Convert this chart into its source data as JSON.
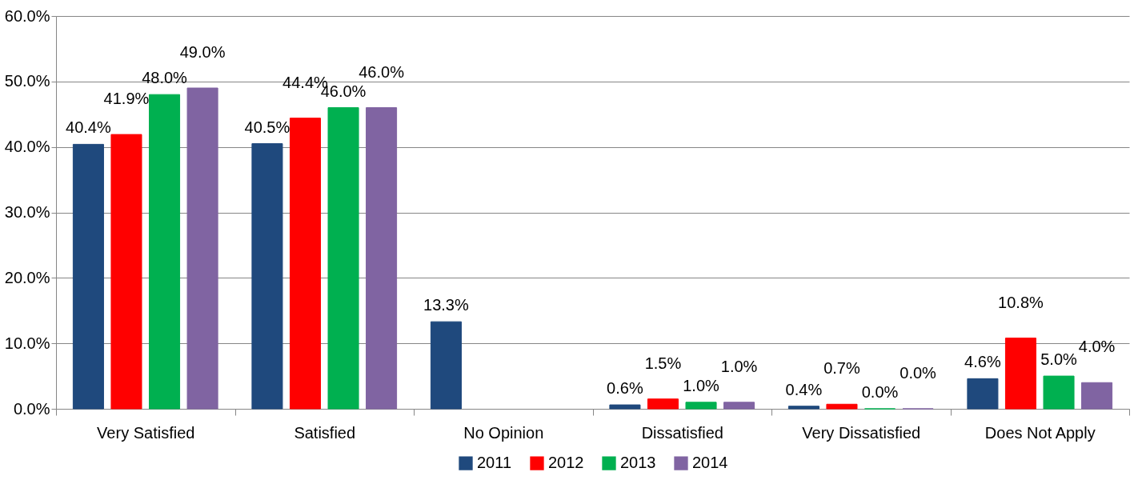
{
  "chart_data": {
    "type": "bar",
    "categories": [
      "Very Satisfied",
      "Satisfied",
      "No Opinion",
      "Dissatisfied",
      "Very Dissatisfied",
      "Does Not Apply"
    ],
    "series": [
      {
        "name": "2011",
        "color": "#1f497d",
        "values": [
          40.4,
          40.5,
          13.3,
          0.6,
          0.4,
          4.6
        ],
        "value_labels": [
          "40.4%",
          "40.5%",
          "13.3%",
          "0.6%",
          "0.4%",
          "4.6%"
        ]
      },
      {
        "name": "2012",
        "color": "#ff0000",
        "values": [
          41.9,
          44.4,
          null,
          1.5,
          0.7,
          10.8
        ],
        "value_labels": [
          "41.9%",
          "44.4%",
          null,
          "1.5%",
          "0.7%",
          "10.8%"
        ]
      },
      {
        "name": "2013",
        "color": "#00b050",
        "values": [
          48.0,
          46.0,
          null,
          1.0,
          0.0,
          5.0
        ],
        "value_labels": [
          "48.0%",
          "46.0%",
          null,
          "1.0%",
          "0.0%",
          "5.0%"
        ]
      },
      {
        "name": "2014",
        "color": "#8064a2",
        "values": [
          49.0,
          46.0,
          null,
          1.0,
          0.0,
          4.0
        ],
        "value_labels": [
          "49.0%",
          "46.0%",
          null,
          "1.0%",
          "0.0%",
          "4.0%"
        ]
      }
    ],
    "ylim": [
      0,
      60
    ],
    "yticks": [
      {
        "value": 0,
        "label": "0.0%"
      },
      {
        "value": 10,
        "label": "10.0%"
      },
      {
        "value": 20,
        "label": "20.0%"
      },
      {
        "value": 30,
        "label": "30.0%"
      },
      {
        "value": 40,
        "label": "40.0%"
      },
      {
        "value": 50,
        "label": "50.0%"
      },
      {
        "value": 60,
        "label": "60.0%"
      }
    ],
    "grid": "y",
    "legend": "bottom"
  }
}
